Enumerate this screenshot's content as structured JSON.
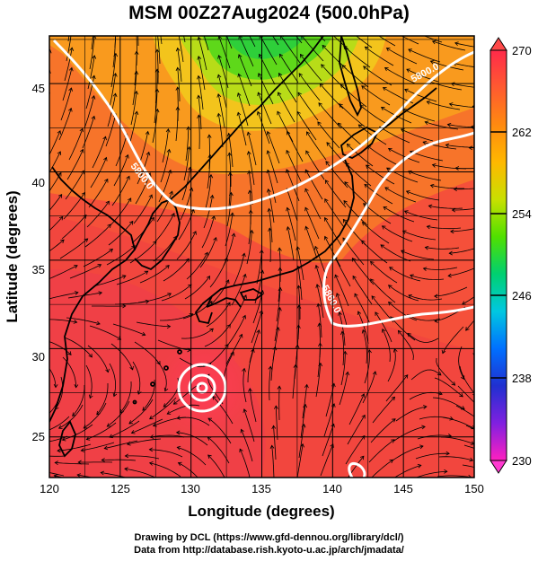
{
  "title": "MSM 00Z27Aug2024 (500.0hPa)",
  "x_axis": {
    "label": "Longitude (degrees)",
    "ticks": [
      "120",
      "125",
      "130",
      "135",
      "140",
      "145",
      "150"
    ]
  },
  "y_axis": {
    "label": "Latitude  (degrees)",
    "ticks": [
      "25",
      "30",
      "35",
      "40",
      "45"
    ]
  },
  "colorbar": {
    "ticks": [
      "270",
      "262",
      "254",
      "246",
      "238",
      "230"
    ],
    "colors": [
      "#ff2a4a",
      "#ff5a30",
      "#ff8a10",
      "#ffb800",
      "#c8e000",
      "#50e000",
      "#00d070",
      "#00c8e0",
      "#0070ff",
      "#2030d0",
      "#8020e0",
      "#ff20c0"
    ]
  },
  "contour_labels": [
    "5800.0",
    "5860.0",
    "5800.0"
  ],
  "credits": {
    "line1": "Drawing by DCL (https://www.gfd-dennou.org/library/dcl/)",
    "line2": "Data from http://database.rish.kyoto-u.ac.jp/arch/jmadata/"
  },
  "map": {
    "lon_range": [
      120,
      150
    ],
    "lat_range": [
      22.7,
      47.7
    ],
    "typhoon_center": [
      130.8,
      28.2
    ]
  }
}
